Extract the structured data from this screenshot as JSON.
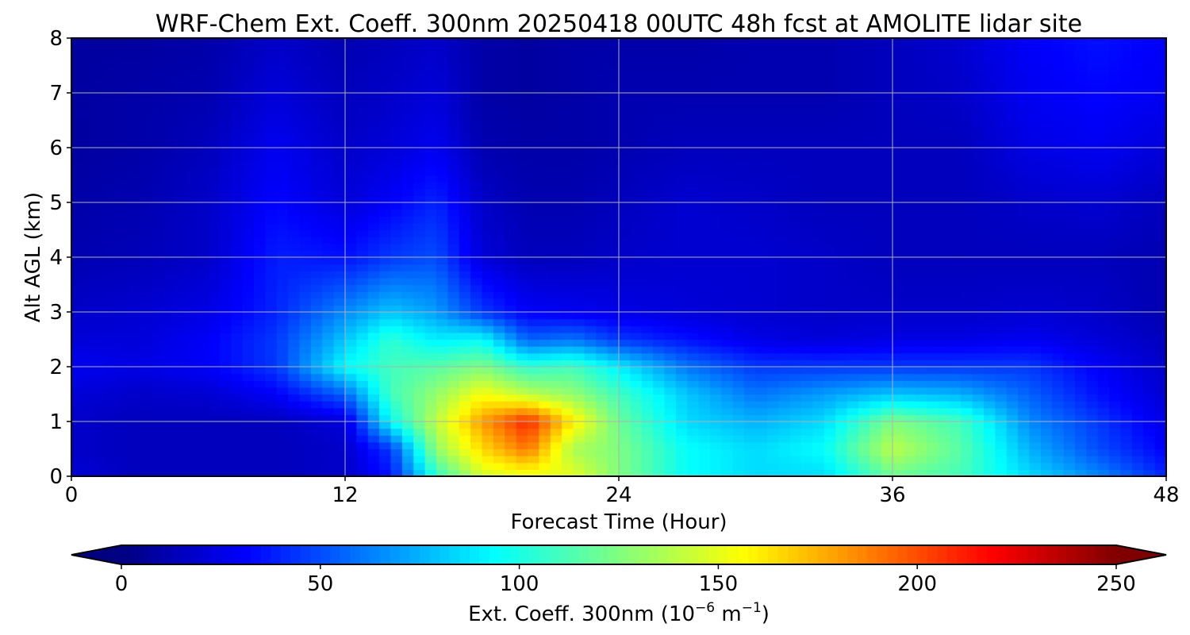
{
  "chart_data": {
    "type": "heatmap",
    "title": "WRF-Chem Ext. Coeff. 300nm  20250418 00UTC 48h fcst at AMOLITE lidar site",
    "xlabel": "Forecast Time (Hour)",
    "ylabel": "Alt AGL (km)",
    "xlim": [
      0,
      48
    ],
    "ylim": [
      0,
      8
    ],
    "xticks": [
      0,
      12,
      24,
      36,
      48
    ],
    "yticks": [
      0,
      1,
      2,
      3,
      4,
      5,
      6,
      7,
      8
    ],
    "grid": true,
    "colorscale": "jet",
    "colorbar": {
      "label": "Ext. Coeff. 300nm",
      "unit_base": "10",
      "unit_exp1": "−6",
      "unit_m": "m",
      "unit_exp2": "−1",
      "ticks": [
        0,
        50,
        100,
        150,
        200,
        250
      ],
      "range": [
        0,
        250
      ],
      "extend": "both",
      "orientation": "horizontal"
    },
    "x": [
      0,
      3,
      6,
      9,
      12,
      14,
      16,
      18,
      20,
      22,
      24,
      27,
      30,
      33,
      36,
      39,
      42,
      45,
      48
    ],
    "y": [
      0,
      0.5,
      1,
      1.5,
      2,
      2.5,
      3,
      4,
      5,
      6,
      7,
      8
    ],
    "z": [
      [
        22,
        15,
        15,
        15,
        18,
        35,
        105,
        145,
        150,
        150,
        125,
        95,
        85,
        85,
        120,
        110,
        85,
        65,
        40
      ],
      [
        18,
        15,
        15,
        15,
        18,
        45,
        130,
        165,
        190,
        135,
        125,
        95,
        85,
        95,
        140,
        115,
        75,
        50,
        30
      ],
      [
        18,
        15,
        15,
        15,
        22,
        95,
        140,
        180,
        210,
        160,
        120,
        85,
        75,
        85,
        125,
        110,
        65,
        45,
        25
      ],
      [
        22,
        18,
        20,
        30,
        55,
        110,
        130,
        155,
        140,
        130,
        110,
        80,
        60,
        70,
        80,
        75,
        55,
        35,
        20
      ],
      [
        28,
        25,
        30,
        45,
        95,
        110,
        115,
        125,
        105,
        110,
        90,
        60,
        45,
        45,
        45,
        45,
        45,
        30,
        18
      ],
      [
        22,
        22,
        30,
        45,
        80,
        105,
        90,
        95,
        55,
        60,
        45,
        35,
        25,
        22,
        25,
        25,
        28,
        22,
        15
      ],
      [
        18,
        20,
        25,
        40,
        65,
        80,
        70,
        45,
        30,
        28,
        25,
        22,
        20,
        18,
        18,
        18,
        20,
        18,
        12
      ],
      [
        12,
        14,
        18,
        38,
        35,
        45,
        50,
        22,
        15,
        15,
        18,
        20,
        20,
        18,
        15,
        15,
        15,
        15,
        12
      ],
      [
        10,
        12,
        18,
        32,
        22,
        30,
        40,
        18,
        12,
        12,
        15,
        20,
        18,
        15,
        15,
        15,
        18,
        20,
        15
      ],
      [
        8,
        10,
        15,
        28,
        18,
        22,
        28,
        12,
        10,
        10,
        12,
        15,
        15,
        15,
        15,
        15,
        25,
        28,
        22
      ],
      [
        8,
        10,
        12,
        22,
        15,
        18,
        22,
        10,
        8,
        10,
        12,
        12,
        12,
        12,
        15,
        18,
        28,
        32,
        28
      ],
      [
        8,
        8,
        10,
        18,
        12,
        15,
        18,
        10,
        8,
        10,
        10,
        10,
        12,
        12,
        15,
        20,
        30,
        35,
        30
      ]
    ]
  }
}
